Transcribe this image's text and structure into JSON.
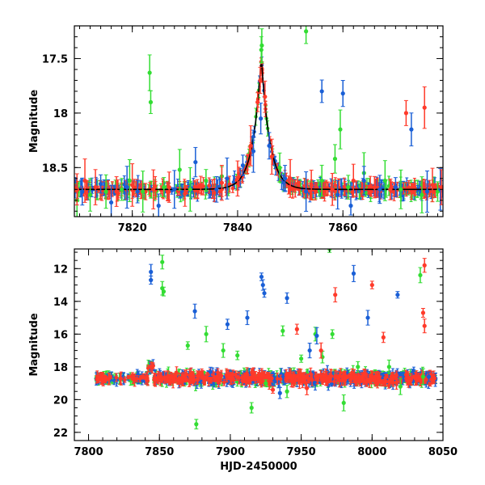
{
  "colors": {
    "green": "#33dd33",
    "blue": "#1a5fd6",
    "red": "#ff3a2a",
    "axis": "#000000",
    "model": "#000000"
  },
  "chart_data": [
    {
      "type": "scatter",
      "title": "",
      "xlabel": "",
      "ylabel": "Magnitude",
      "xlim": [
        7809,
        7879
      ],
      "ylim": [
        18.95,
        17.2
      ],
      "y_inverted": true,
      "xticks": [
        7820,
        7840,
        7860
      ],
      "yticks": [
        17.5,
        18,
        18.5
      ],
      "grid": false,
      "legend": "none",
      "baseline_mag": 18.7,
      "peak": {
        "x": 7844.5,
        "y": 17.42
      },
      "series": [
        {
          "color_key": "green",
          "points": [
            [
              7809.5,
              18.8
            ],
            [
              7812,
              18.75
            ],
            [
              7815,
              18.72
            ],
            [
              7818,
              18.7
            ],
            [
              7819.5,
              18.62
            ],
            [
              7822,
              18.72
            ],
            [
              7823.3,
              17.63
            ],
            [
              7823.5,
              17.9
            ],
            [
              7826,
              18.68
            ],
            [
              7829,
              18.52
            ],
            [
              7831,
              18.7
            ],
            [
              7834,
              18.62
            ],
            [
              7837,
              18.58
            ],
            [
              7844.5,
              17.42
            ],
            [
              7844.6,
              17.38
            ],
            [
              7848,
              18.5
            ],
            [
              7853,
              17.25
            ],
            [
              7856,
              18.62
            ],
            [
              7858.5,
              18.42
            ],
            [
              7859.5,
              18.15
            ],
            [
              7861,
              18.68
            ],
            [
              7864,
              18.55
            ],
            [
              7868,
              18.62
            ],
            [
              7871,
              18.7
            ],
            [
              7875,
              18.75
            ],
            [
              7878,
              18.72
            ]
          ]
        },
        {
          "color_key": "blue",
          "points": [
            [
              7810.5,
              18.72
            ],
            [
              7814,
              18.65
            ],
            [
              7816,
              18.82
            ],
            [
              7819,
              18.68
            ],
            [
              7821,
              18.72
            ],
            [
              7825,
              18.85
            ],
            [
              7828,
              18.7
            ],
            [
              7832,
              18.45
            ],
            [
              7836,
              18.7
            ],
            [
              7838,
              18.6
            ],
            [
              7841,
              18.48
            ],
            [
              7843,
              18.35
            ],
            [
              7844.4,
              18.05
            ],
            [
              7846,
              18.3
            ],
            [
              7849,
              18.6
            ],
            [
              7853,
              18.72
            ],
            [
              7856,
              17.8
            ],
            [
              7859,
              18.75
            ],
            [
              7860,
              17.82
            ],
            [
              7861.5,
              18.85
            ],
            [
              7864,
              18.62
            ],
            [
              7867,
              18.7
            ],
            [
              7870,
              18.68
            ],
            [
              7873,
              18.15
            ],
            [
              7876,
              18.72
            ],
            [
              7878.5,
              18.7
            ]
          ]
        },
        {
          "color_key": "red",
          "points": [
            [
              7809.5,
              18.7
            ],
            [
              7811,
              18.62
            ],
            [
              7813,
              18.68
            ],
            [
              7817,
              18.72
            ],
            [
              7820,
              18.66
            ],
            [
              7824,
              18.7
            ],
            [
              7827,
              18.68
            ],
            [
              7830,
              18.74
            ],
            [
              7833,
              18.66
            ],
            [
              7837,
              18.64
            ],
            [
              7840,
              18.6
            ],
            [
              7842.5,
              18.3
            ],
            [
              7843.8,
              17.9
            ],
            [
              7844.3,
              17.7
            ],
            [
              7845.2,
              17.85
            ],
            [
              7846.5,
              18.4
            ],
            [
              7850,
              18.6
            ],
            [
              7854,
              18.66
            ],
            [
              7858,
              18.7
            ],
            [
              7862,
              18.62
            ],
            [
              7866,
              18.68
            ],
            [
              7869,
              18.7
            ],
            [
              7872,
              18.0
            ],
            [
              7875.5,
              17.95
            ],
            [
              7877,
              18.66
            ],
            [
              7878.7,
              18.68
            ]
          ]
        }
      ]
    },
    {
      "type": "scatter",
      "title": "",
      "xlabel": "HJD-2450000",
      "ylabel": "Magnitude",
      "xlim": [
        7790,
        8050
      ],
      "ylim": [
        22.5,
        10.8
      ],
      "y_inverted": true,
      "xticks": [
        7800,
        7850,
        7900,
        7950,
        8000,
        8050
      ],
      "yticks": [
        12,
        14,
        16,
        18,
        20,
        22
      ],
      "grid": false,
      "legend": "none",
      "baseline_mag": 18.7,
      "series": [
        {
          "color_key": "green",
          "points": [
            [
              7852,
              11.6
            ],
            [
              7852,
              13.2
            ],
            [
              7853,
              13.4
            ],
            [
              7870,
              16.7
            ],
            [
              7876,
              21.5
            ],
            [
              7883,
              16.0
            ],
            [
              7895,
              17.0
            ],
            [
              7905,
              17.3
            ],
            [
              7915,
              20.5
            ],
            [
              7925,
              19.0
            ],
            [
              7937,
              15.8
            ],
            [
              7940,
              19.5
            ],
            [
              7950,
              17.5
            ],
            [
              7960,
              16.0
            ],
            [
              7965,
              17.4
            ],
            [
              7970,
              10.8
            ],
            [
              7972,
              16.0
            ],
            [
              7980,
              20.2
            ],
            [
              7990,
              18.0
            ],
            [
              8012,
              18.0
            ],
            [
              8020,
              19.2
            ],
            [
              8034,
              12.4
            ],
            [
              8036,
              18.6
            ]
          ]
        },
        {
          "color_key": "blue",
          "points": [
            [
              7844,
              12.2
            ],
            [
              7844,
              12.7
            ],
            [
              7875,
              14.6
            ],
            [
              7886,
              18.3
            ],
            [
              7898,
              15.4
            ],
            [
              7912,
              15.0
            ],
            [
              7922,
              12.5
            ],
            [
              7923,
              13.0
            ],
            [
              7924,
              13.5
            ],
            [
              7935,
              19.6
            ],
            [
              7940,
              13.8
            ],
            [
              7956,
              17.0
            ],
            [
              7961,
              16.1
            ],
            [
              7987,
              12.3
            ],
            [
              7997,
              15.0
            ],
            [
              8018,
              13.6
            ],
            [
              8040,
              18.6
            ]
          ]
        },
        {
          "color_key": "red",
          "points": [
            [
              7844,
              18.0
            ],
            [
              7900,
              18.7
            ],
            [
              7930,
              19.4
            ],
            [
              7947,
              15.7
            ],
            [
              7954,
              19.3
            ],
            [
              7964,
              17.0
            ],
            [
              7974,
              13.6
            ],
            [
              8000,
              13.0
            ],
            [
              8008,
              16.2
            ],
            [
              8037,
              11.8
            ],
            [
              8036,
              14.7
            ],
            [
              8037,
              15.5
            ],
            [
              8044,
              18.7
            ]
          ]
        }
      ]
    }
  ]
}
